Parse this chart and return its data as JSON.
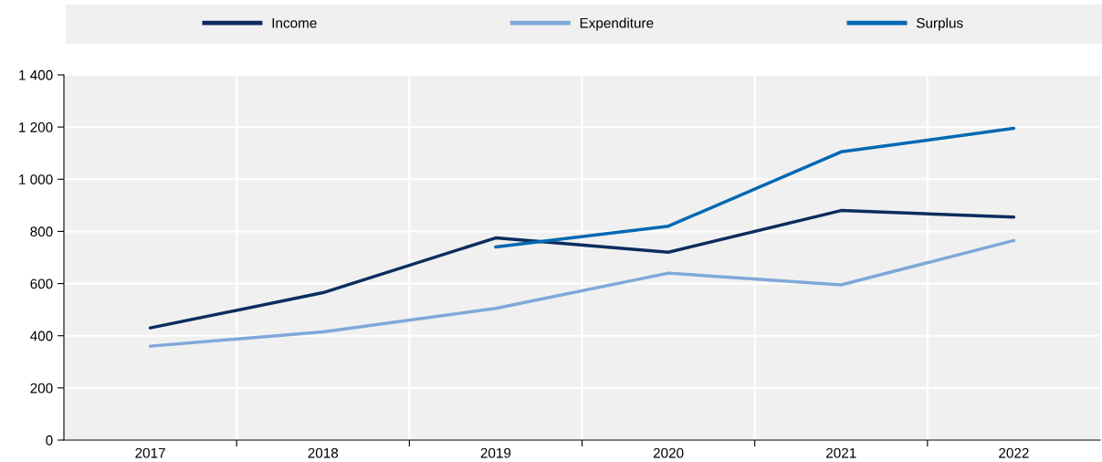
{
  "chart_data": {
    "type": "line",
    "categories": [
      "2017",
      "2018",
      "2019",
      "2020",
      "2021",
      "2022"
    ],
    "series": [
      {
        "name": "Income",
        "color": "#0b2d5e",
        "values": [
          430,
          565,
          775,
          720,
          880,
          855
        ]
      },
      {
        "name": "Expenditure",
        "color": "#7fa8d9",
        "values": [
          360,
          415,
          505,
          640,
          595,
          765
        ]
      },
      {
        "name": "Surplus",
        "color": "#0068b3",
        "values": [
          null,
          null,
          740,
          820,
          1105,
          1195
        ]
      }
    ],
    "ylim": [
      0,
      1400
    ],
    "yticks": [
      0,
      200,
      400,
      600,
      800,
      {
        "value": 1000,
        "label": "1 000"
      },
      {
        "value": 1200,
        "label": "1 200"
      },
      {
        "value": 1400,
        "label": "1 400"
      }
    ],
    "grid": true,
    "legend": "top",
    "marker": "none",
    "line_style": "solid"
  }
}
